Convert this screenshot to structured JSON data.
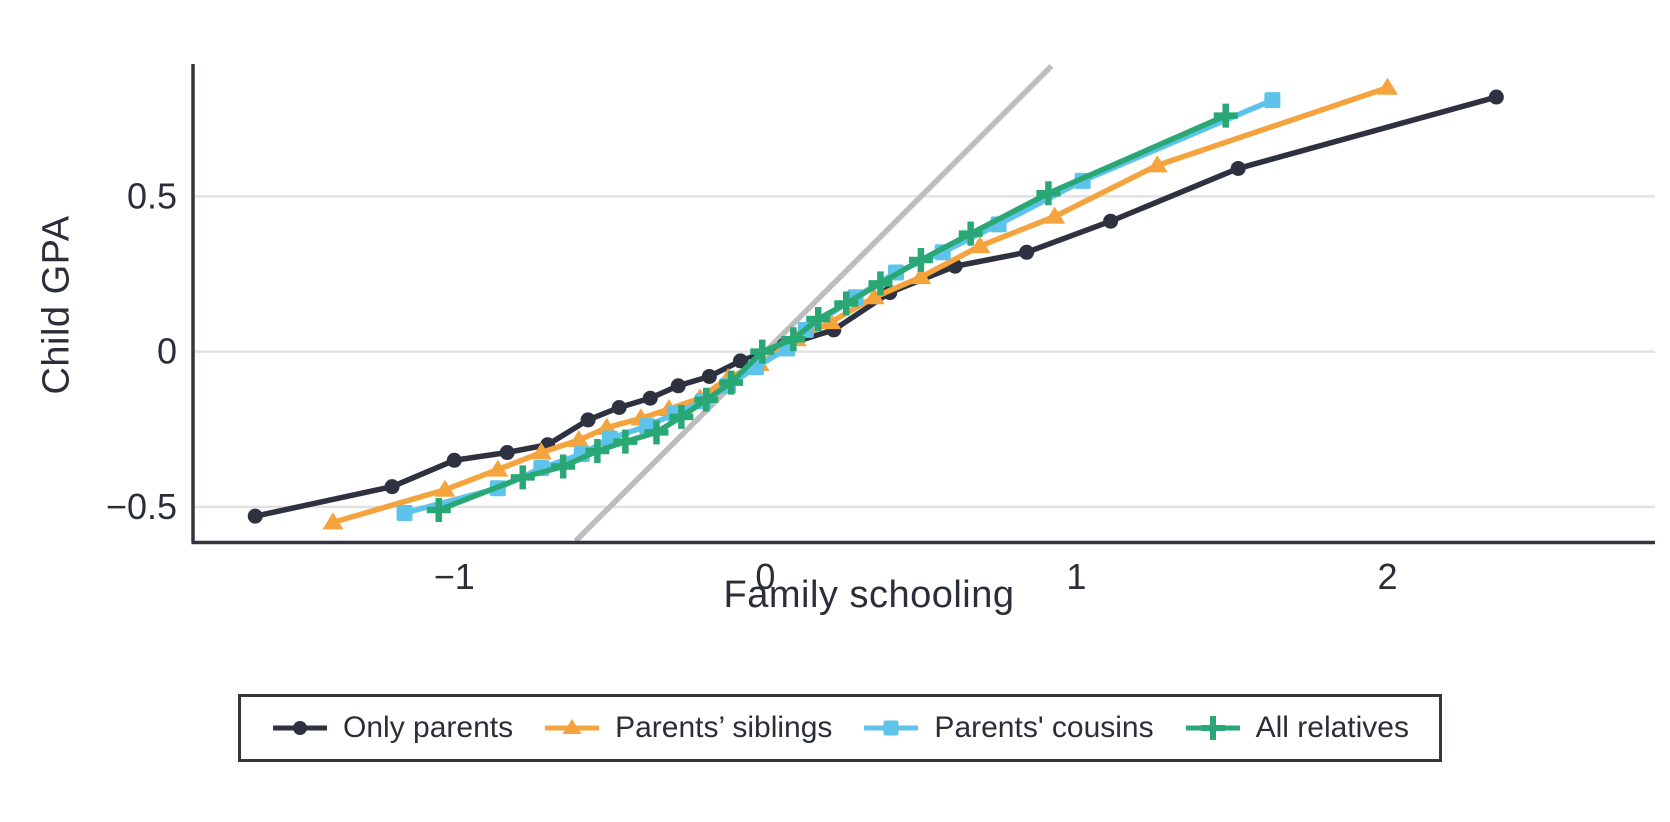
{
  "chart_data": {
    "type": "line",
    "title": "",
    "xlabel": "Family schooling",
    "ylabel": "Child GPA",
    "xlim": [
      -1.84,
      2.86
    ],
    "ylim": [
      -0.61,
      0.92
    ],
    "grid": "horizontal-only",
    "legend_position": "bottom-center-boxed",
    "x_ticks": [
      -1,
      0,
      1,
      2
    ],
    "x_tick_labels": [
      "−1",
      "0",
      "1",
      "2"
    ],
    "y_ticks": [
      0.5,
      0,
      -0.5
    ],
    "y_tick_labels": [
      "0.5",
      "0",
      "−0.5"
    ],
    "reference_line": {
      "name": "45-degree-identity-line",
      "slope": 1,
      "intercept": 0,
      "color": "#bdbdbd"
    },
    "series": [
      {
        "name": "Only parents",
        "marker": "circle",
        "color": "#2e3240",
        "points": [
          [
            -1.64,
            -0.53
          ],
          [
            -1.2,
            -0.435
          ],
          [
            -1.0,
            -0.35
          ],
          [
            -0.83,
            -0.325
          ],
          [
            -0.7,
            -0.3
          ],
          [
            -0.57,
            -0.22
          ],
          [
            -0.47,
            -0.18
          ],
          [
            -0.37,
            -0.15
          ],
          [
            -0.28,
            -0.11
          ],
          [
            -0.18,
            -0.08
          ],
          [
            -0.08,
            -0.03
          ],
          [
            0.06,
            0.02
          ],
          [
            0.22,
            0.07
          ],
          [
            0.4,
            0.19
          ],
          [
            0.61,
            0.275
          ],
          [
            0.84,
            0.32
          ],
          [
            1.11,
            0.42
          ],
          [
            1.52,
            0.59
          ],
          [
            2.35,
            0.82
          ]
        ]
      },
      {
        "name": "Parents’ siblings",
        "marker": "triangle",
        "color": "#f5a43d",
        "points": [
          [
            -1.39,
            -0.55
          ],
          [
            -1.03,
            -0.445
          ],
          [
            -0.86,
            -0.38
          ],
          [
            -0.72,
            -0.325
          ],
          [
            -0.6,
            -0.285
          ],
          [
            -0.51,
            -0.245
          ],
          [
            -0.4,
            -0.215
          ],
          [
            -0.31,
            -0.185
          ],
          [
            -0.21,
            -0.15
          ],
          [
            -0.12,
            -0.085
          ],
          [
            -0.02,
            -0.04
          ],
          [
            0.1,
            0.04
          ],
          [
            0.21,
            0.095
          ],
          [
            0.35,
            0.175
          ],
          [
            0.5,
            0.24
          ],
          [
            0.69,
            0.34
          ],
          [
            0.93,
            0.435
          ],
          [
            1.26,
            0.6
          ],
          [
            2.0,
            0.85
          ]
        ]
      },
      {
        "name": "Parents' cousins",
        "marker": "square",
        "color": "#5ec3eb",
        "points": [
          [
            -1.16,
            -0.52
          ],
          [
            -0.86,
            -0.44
          ],
          [
            -0.72,
            -0.375
          ],
          [
            -0.59,
            -0.33
          ],
          [
            -0.5,
            -0.28
          ],
          [
            -0.38,
            -0.24
          ],
          [
            -0.29,
            -0.2
          ],
          [
            -0.2,
            -0.16
          ],
          [
            -0.12,
            -0.11
          ],
          [
            -0.03,
            -0.05
          ],
          [
            0.07,
            0.01
          ],
          [
            0.13,
            0.07
          ],
          [
            0.29,
            0.175
          ],
          [
            0.42,
            0.255
          ],
          [
            0.57,
            0.32
          ],
          [
            0.75,
            0.41
          ],
          [
            1.02,
            0.55
          ],
          [
            1.63,
            0.81
          ]
        ]
      },
      {
        "name": "All relatives",
        "marker": "plus",
        "color": "#29a876",
        "points": [
          [
            -1.05,
            -0.51
          ],
          [
            -0.78,
            -0.405
          ],
          [
            -0.65,
            -0.37
          ],
          [
            -0.54,
            -0.32
          ],
          [
            -0.45,
            -0.29
          ],
          [
            -0.35,
            -0.26
          ],
          [
            -0.27,
            -0.21
          ],
          [
            -0.19,
            -0.155
          ],
          [
            -0.11,
            -0.1
          ],
          [
            -0.01,
            0.0
          ],
          [
            0.09,
            0.04
          ],
          [
            0.17,
            0.105
          ],
          [
            0.26,
            0.155
          ],
          [
            0.37,
            0.22
          ],
          [
            0.5,
            0.295
          ],
          [
            0.66,
            0.38
          ],
          [
            0.91,
            0.51
          ],
          [
            1.48,
            0.76
          ]
        ]
      }
    ],
    "colors": {
      "axis_line": "#33363f",
      "grid_line": "#e2e2e2",
      "tick_text": "#2b2e38",
      "background": "#ffffff"
    }
  }
}
